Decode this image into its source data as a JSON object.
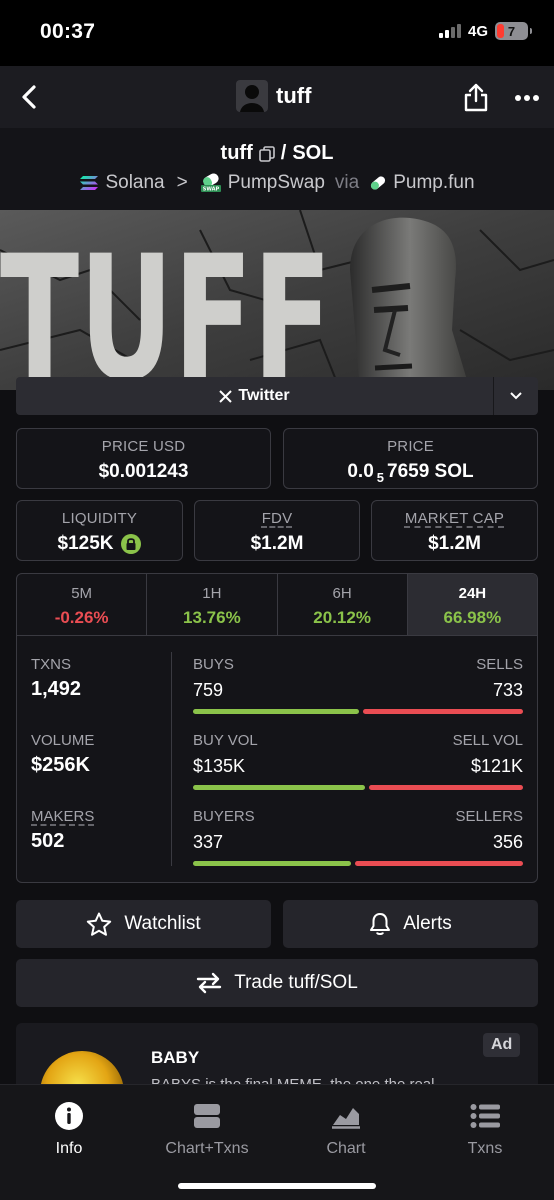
{
  "status_bar": {
    "time": "00:37",
    "network": "4G",
    "battery": "7"
  },
  "nav": {
    "title": "tuff"
  },
  "pair": {
    "base": "tuff",
    "separator": "/",
    "quote": "SOL",
    "chain": "Solana",
    "chevron": ">",
    "dex": "PumpSwap",
    "via": "via",
    "launchpad": "Pump.fun"
  },
  "banner": {
    "text": "TUFF"
  },
  "links": {
    "twitter_label": "Twitter"
  },
  "price_usd": {
    "label": "PRICE USD",
    "value": "$0.001243"
  },
  "price_native": {
    "label": "PRICE",
    "prefix": "0.0",
    "zeros": "5",
    "suffix": "7659 SOL"
  },
  "liquidity": {
    "label": "LIQUIDITY",
    "value": "$125K"
  },
  "fdv": {
    "label": "FDV",
    "value": "$1.2M"
  },
  "market_cap": {
    "label": "MARKET CAP",
    "value": "$1.2M"
  },
  "timeframes": [
    {
      "label": "5M",
      "value": "-0.26%",
      "trend": "neg",
      "active": false
    },
    {
      "label": "1H",
      "value": "13.76%",
      "trend": "pos",
      "active": false
    },
    {
      "label": "6H",
      "value": "20.12%",
      "trend": "pos",
      "active": false
    },
    {
      "label": "24H",
      "value": "66.98%",
      "trend": "pos",
      "active": true
    }
  ],
  "stats": {
    "txns": {
      "label": "TXNS",
      "value": "1,492"
    },
    "volume": {
      "label": "VOLUME",
      "value": "$256K"
    },
    "makers": {
      "label": "MAKERS",
      "value": "502"
    },
    "buys_sells": {
      "left_label": "BUYS",
      "right_label": "SELLS",
      "left_value": "759",
      "right_value": "733",
      "left_share": 0.509
    },
    "vol_split": {
      "left_label": "BUY VOL",
      "right_label": "SELL VOL",
      "left_value": "$135K",
      "right_value": "$121K",
      "left_share": 0.527
    },
    "buyers_sellers": {
      "left_label": "BUYERS",
      "right_label": "SELLERS",
      "left_value": "337",
      "right_value": "356",
      "left_share": 0.486
    }
  },
  "actions": {
    "watchlist": "Watchlist",
    "alerts": "Alerts",
    "trade": "Trade tuff/SOL"
  },
  "ad": {
    "badge": "Ad",
    "title": "BABY",
    "text": "BABYS is the final MEME, the one the real"
  },
  "bottom_tabs": [
    {
      "label": "Info",
      "icon": "info-icon",
      "active": true
    },
    {
      "label": "Chart+Txns",
      "icon": "chart-txns-icon",
      "active": false
    },
    {
      "label": "Chart",
      "icon": "chart-icon",
      "active": false
    },
    {
      "label": "Txns",
      "icon": "list-icon",
      "active": false
    }
  ],
  "colors": {
    "positive": "#8bc34a",
    "negative": "#ea4d53",
    "background": "#0f0f12"
  }
}
